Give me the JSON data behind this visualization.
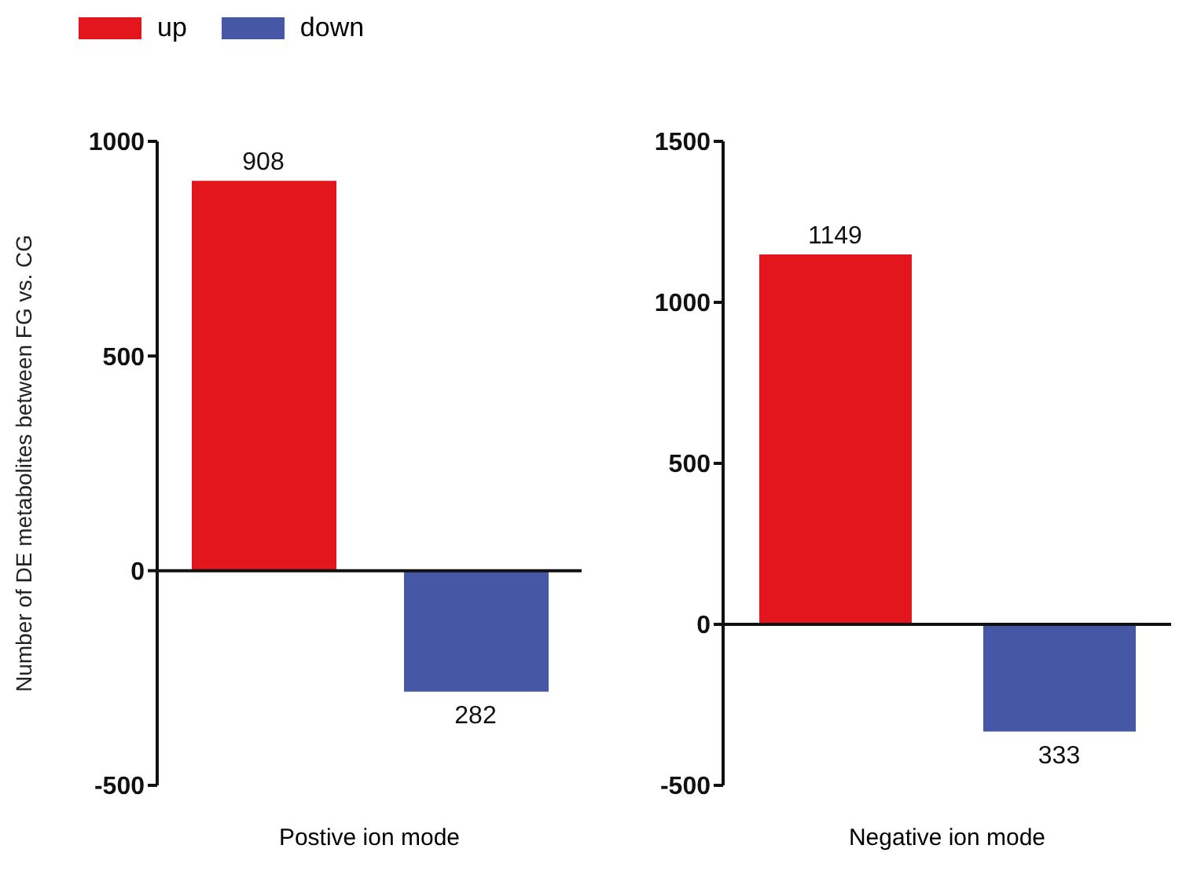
{
  "chart_data": [
    {
      "type": "bar",
      "xlabel": "Postive ion mode",
      "ylabel": "Number of DE metabolites between FG vs. CG",
      "categories": [
        null,
        null
      ],
      "ylim": [
        -500,
        1000
      ],
      "yticks": [
        -500,
        0,
        500,
        1000
      ],
      "legend": "top left",
      "series": [
        {
          "name": "up",
          "color": "#e3161d",
          "values": [
            908,
            null
          ],
          "value_labels": [
            "908",
            null
          ]
        },
        {
          "name": "down",
          "color": "#4657a6",
          "values": [
            null,
            282
          ],
          "base": [
            null,
            -282
          ],
          "value_labels": [
            null,
            "282"
          ]
        }
      ]
    },
    {
      "type": "bar",
      "xlabel": "Negative ion mode",
      "categories": [
        null,
        null
      ],
      "ylim": [
        -500,
        1500
      ],
      "yticks": [
        -500,
        0,
        500,
        1000,
        1500
      ],
      "legend": false,
      "series": [
        {
          "color": "#e3161d",
          "values": [
            1149,
            null
          ],
          "value_labels": [
            "1149",
            null
          ]
        },
        {
          "color": "#4657a6",
          "values": [
            null,
            333
          ],
          "base": [
            null,
            -333
          ],
          "value_labels": [
            null,
            "333"
          ]
        }
      ]
    }
  ]
}
